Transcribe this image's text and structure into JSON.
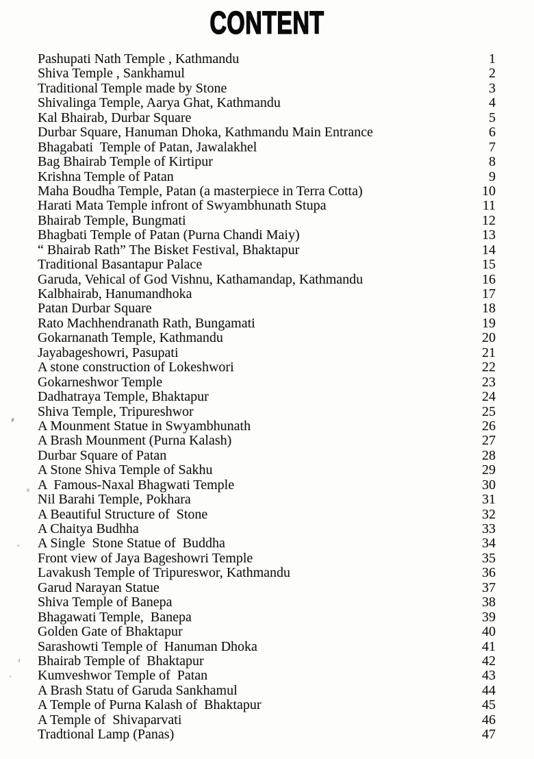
{
  "page": {
    "title": "CONTENT"
  },
  "toc": {
    "entries": [
      {
        "title": "Pashupati Nath Temple , Kathmandu",
        "page": "1"
      },
      {
        "title": "Shiva Temple , Sankhamul",
        "page": "2"
      },
      {
        "title": "Traditional Temple made by Stone",
        "page": "3"
      },
      {
        "title": "Shivalinga Temple, Aarya Ghat, Kathmandu",
        "page": "4"
      },
      {
        "title": "Kal Bhairab, Durbar Square",
        "page": "5"
      },
      {
        "title": "Durbar Square, Hanuman Dhoka, Kathmandu Main Entrance",
        "page": "6"
      },
      {
        "title": "Bhagabati  Temple of Patan, Jawalakhel",
        "page": "7"
      },
      {
        "title": "Bag Bhairab Temple of Kirtipur",
        "page": "8"
      },
      {
        "title": "Krishna Temple of Patan",
        "page": "9"
      },
      {
        "title": "Maha Boudha Temple, Patan (a masterpiece in Terra Cotta)",
        "page": "10"
      },
      {
        "title": "Harati Mata Temple infront of Swyambhunath Stupa",
        "page": "11"
      },
      {
        "title": "Bhairab Temple, Bungmati",
        "page": "12"
      },
      {
        "title": "Bhagbati Temple of Patan (Purna Chandi Maiy)",
        "page": "13"
      },
      {
        "title": "“ Bhairab Rath” The Bisket Festival, Bhaktapur",
        "page": "14"
      },
      {
        "title": "Traditional Basantapur Palace",
        "page": "15"
      },
      {
        "title": "Garuda, Vehical of God Vishnu, Kathamandap, Kathmandu",
        "page": "16"
      },
      {
        "title": "Kalbhairab, Hanumandhoka",
        "page": "17"
      },
      {
        "title": "Patan Durbar Square",
        "page": "18"
      },
      {
        "title": "Rato Machhendranath Rath, Bungamati",
        "page": "19"
      },
      {
        "title": "Gokarnanath Temple, Kathmandu",
        "page": "20"
      },
      {
        "title": "Jayabageshowri, Pasupati",
        "page": "21"
      },
      {
        "title": "A stone construction of Lokeshwori",
        "page": "22"
      },
      {
        "title": "Gokarneshwor Temple",
        "page": "23"
      },
      {
        "title": "Dadhatraya Temple, Bhaktapur",
        "page": "24"
      },
      {
        "title": "Shiva Temple, Tripureshwor",
        "page": "25"
      },
      {
        "title": "A Mounment Statue in Swyambhunath",
        "page": "26"
      },
      {
        "title": "A Brash Mounment (Purna Kalash)",
        "page": "27"
      },
      {
        "title": "Durbar Square of Patan",
        "page": "28"
      },
      {
        "title": "A Stone Shiva Temple of Sakhu",
        "page": "29"
      },
      {
        "title": "A  Famous-Naxal Bhagwati Temple",
        "page": "30"
      },
      {
        "title": "Nil Barahi Temple, Pokhara",
        "page": "31"
      },
      {
        "title": "A Beautiful Structure of  Stone",
        "page": "32"
      },
      {
        "title": "A Chaitya Budhha",
        "page": "33"
      },
      {
        "title": "A Single  Stone Statue of  Buddha",
        "page": "34"
      },
      {
        "title": "Front view of Jaya Bageshowri Temple",
        "page": "35"
      },
      {
        "title": "Lavakush Temple of Tripureswor, Kathmandu",
        "page": "36"
      },
      {
        "title": "Garud Narayan Statue",
        "page": "37"
      },
      {
        "title": "Shiva Temple of Banepa",
        "page": "38"
      },
      {
        "title": "Bhagawati Temple,  Banepa",
        "page": "39"
      },
      {
        "title": "Golden Gate of Bhaktapur",
        "page": "40"
      },
      {
        "title": "Sarashowti Temple of  Hanuman Dhoka",
        "page": "41"
      },
      {
        "title": "Bhairab Temple of  Bhaktapur",
        "page": "42"
      },
      {
        "title": "Kumveshwor Temple of  Patan",
        "page": "43"
      },
      {
        "title": "A Brash Statu of Garuda Sankhamul",
        "page": "44"
      },
      {
        "title": "A Temple of Purna Kalash of  Bhaktapur",
        "page": "45"
      },
      {
        "title": "A Temple of  Shivaparvati",
        "page": "46"
      },
      {
        "title": "Tradtional Lamp (Panas)",
        "page": "47"
      }
    ]
  }
}
